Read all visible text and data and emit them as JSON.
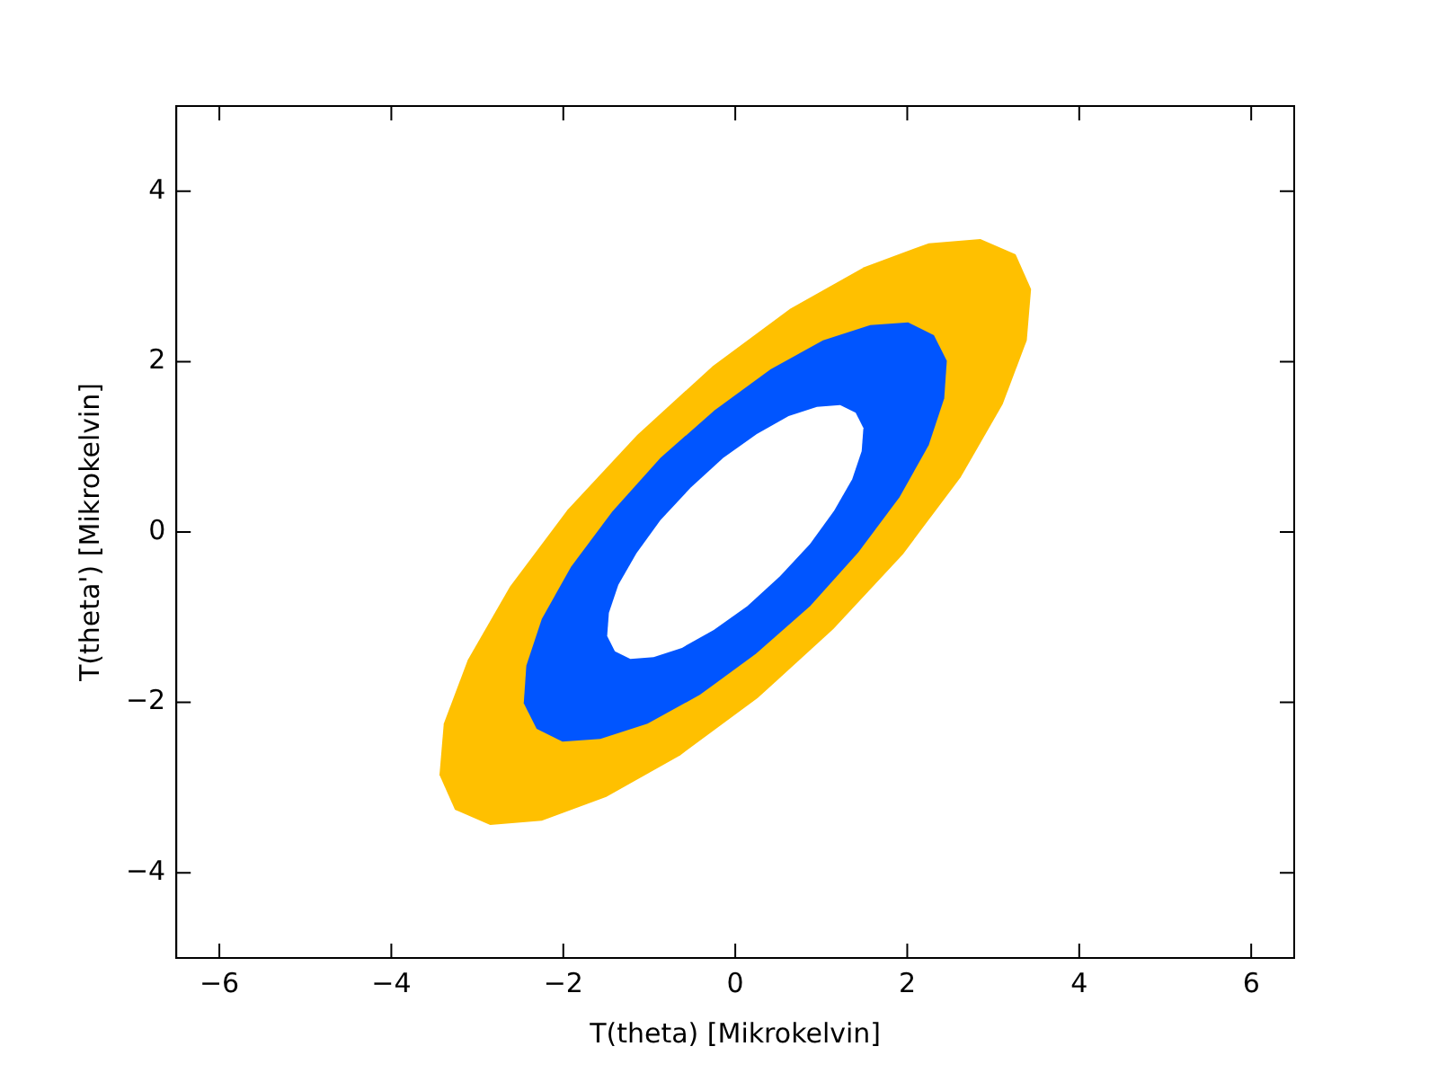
{
  "chart_data": {
    "type": "area",
    "xlabel": "T(theta) [Mikrokelvin]",
    "ylabel": "T(theta') [Mikrokelvin]",
    "xlim": [
      -6.5,
      6.5
    ],
    "ylim": [
      -5,
      5
    ],
    "xticks": [
      -6,
      -4,
      -2,
      0,
      2,
      4,
      6
    ],
    "yticks": [
      -4,
      -2,
      0,
      2,
      4
    ],
    "series": [
      {
        "color": "#ffc000",
        "x": [
          3.26,
          2.85,
          2.25,
          1.5,
          0.64,
          -0.26,
          -1.14,
          -1.95,
          -2.62,
          -3.11,
          -3.39,
          -3.44,
          -3.26,
          -2.85,
          -2.25,
          -1.5,
          -0.64,
          0.26,
          1.14,
          1.95,
          2.62,
          3.11,
          3.39,
          3.44,
          3.26
        ],
        "values": [
          3.26,
          3.44,
          3.39,
          3.11,
          2.62,
          1.95,
          1.14,
          0.26,
          -0.64,
          -1.5,
          -2.25,
          -2.85,
          -3.26,
          -3.44,
          -3.39,
          -3.11,
          -2.62,
          -1.95,
          -1.14,
          -0.26,
          0.64,
          1.5,
          2.25,
          2.85,
          3.26
        ]
      },
      {
        "color": "#0055ff",
        "x": [
          2.31,
          2.01,
          1.57,
          1.02,
          0.41,
          -0.24,
          -0.87,
          -1.43,
          -1.91,
          -2.25,
          -2.43,
          -2.46,
          -2.31,
          -2.01,
          -1.57,
          -1.02,
          -0.41,
          0.24,
          0.87,
          1.43,
          1.91,
          2.25,
          2.43,
          2.46,
          2.31
        ],
        "values": [
          2.31,
          2.46,
          2.43,
          2.25,
          1.91,
          1.43,
          0.87,
          0.24,
          -0.41,
          -1.02,
          -1.57,
          -2.01,
          -2.31,
          -2.46,
          -2.43,
          -2.25,
          -1.91,
          -1.43,
          -0.87,
          -0.24,
          0.41,
          1.02,
          1.57,
          2.01,
          2.31
        ]
      },
      {
        "color": "#ffffff",
        "x": [
          1.4,
          1.22,
          0.95,
          0.62,
          0.25,
          -0.14,
          -0.52,
          -0.87,
          -1.15,
          -1.36,
          -1.47,
          -1.49,
          -1.4,
          -1.22,
          -0.95,
          -0.62,
          -0.25,
          0.14,
          0.52,
          0.87,
          1.15,
          1.36,
          1.47,
          1.49,
          1.4
        ],
        "values": [
          1.4,
          1.49,
          1.47,
          1.36,
          1.15,
          0.87,
          0.52,
          0.14,
          -0.25,
          -0.62,
          -0.95,
          -1.22,
          -1.4,
          -1.49,
          -1.47,
          -1.36,
          -1.15,
          -0.87,
          -0.52,
          -0.14,
          0.25,
          0.62,
          0.95,
          1.22,
          1.4
        ]
      }
    ]
  }
}
